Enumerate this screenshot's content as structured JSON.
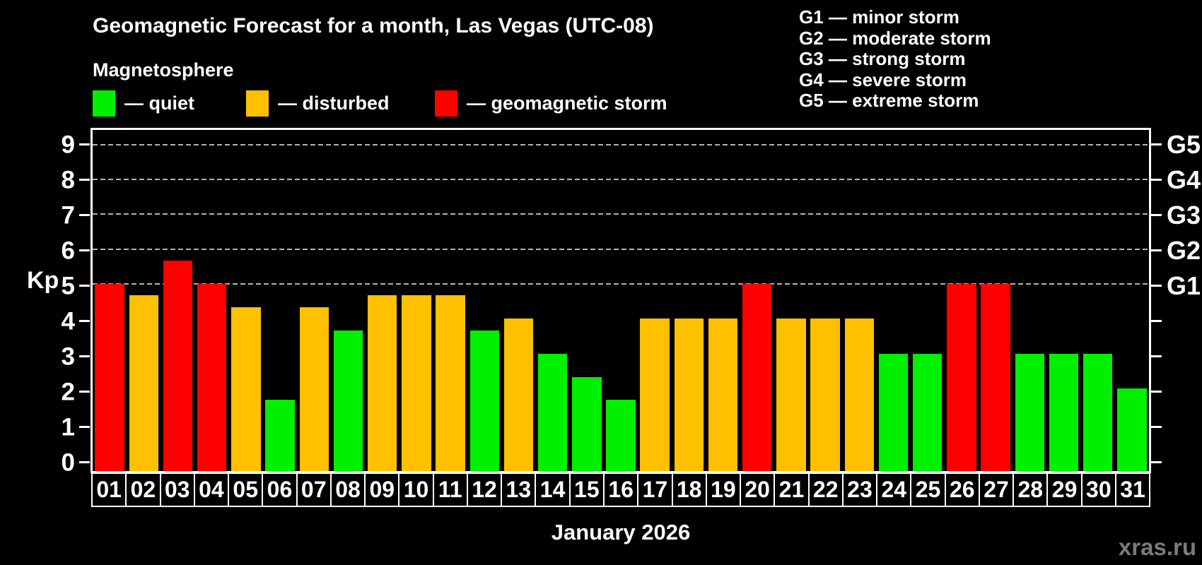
{
  "title": "Geomagnetic Forecast for a month, Las Vegas (UTC-08)",
  "subtitle": "Magnetosphere",
  "legend": {
    "items": [
      {
        "key": "quiet",
        "label": "— quiet",
        "color": "#00f000",
        "offset_x": 0
      },
      {
        "key": "disturbed",
        "label": "— disturbed",
        "color": "#ffc000",
        "offset_x": 217
      },
      {
        "key": "storm",
        "label": "— geomagnetic storm",
        "color": "#ff0000",
        "offset_x": 484
      }
    ]
  },
  "g_scale_legend": [
    "G1 — minor storm",
    "G2 — moderate storm",
    "G3 — strong storm",
    "G4 — severe storm",
    "G5 — extreme storm"
  ],
  "watermark": "xras.ru",
  "chart_data": {
    "type": "bar",
    "title": "Geomagnetic Forecast for a month, Las Vegas (UTC-08)",
    "xlabel": "January 2026",
    "ylabel": "Kp",
    "ylim": [
      -0.37,
      9.42
    ],
    "yticks": [
      0,
      1,
      2,
      3,
      4,
      5,
      6,
      7,
      8,
      9
    ],
    "gridlines_at": [
      5,
      6,
      7,
      8,
      9
    ],
    "grid": true,
    "legend_position": "top-left",
    "right_axis_labels": [
      {
        "kp": 5,
        "label": "G1"
      },
      {
        "kp": 6,
        "label": "G2"
      },
      {
        "kp": 7,
        "label": "G3"
      },
      {
        "kp": 8,
        "label": "G4"
      },
      {
        "kp": 9,
        "label": "G5"
      }
    ],
    "categories": [
      "01",
      "02",
      "03",
      "04",
      "05",
      "06",
      "07",
      "08",
      "09",
      "10",
      "11",
      "12",
      "13",
      "14",
      "15",
      "16",
      "17",
      "18",
      "19",
      "20",
      "21",
      "22",
      "23",
      "24",
      "25",
      "26",
      "27",
      "28",
      "29",
      "30",
      "31"
    ],
    "values": [
      5.0,
      4.67,
      5.67,
      5.0,
      4.33,
      1.67,
      4.33,
      3.67,
      4.67,
      4.67,
      4.67,
      3.67,
      4.0,
      3.0,
      2.33,
      1.67,
      4.0,
      4.0,
      4.0,
      5.0,
      4.0,
      4.0,
      4.0,
      3.0,
      3.0,
      5.0,
      5.0,
      3.0,
      3.0,
      3.0,
      2.0
    ],
    "levels": [
      "storm",
      "disturbed",
      "storm",
      "storm",
      "disturbed",
      "quiet",
      "disturbed",
      "quiet",
      "disturbed",
      "disturbed",
      "disturbed",
      "quiet",
      "disturbed",
      "quiet",
      "quiet",
      "quiet",
      "disturbed",
      "disturbed",
      "disturbed",
      "storm",
      "disturbed",
      "disturbed",
      "disturbed",
      "quiet",
      "quiet",
      "storm",
      "storm",
      "quiet",
      "quiet",
      "quiet",
      "quiet"
    ],
    "colors": {
      "quiet": "#00f000",
      "disturbed": "#ffc000",
      "storm": "#ff0000"
    }
  }
}
